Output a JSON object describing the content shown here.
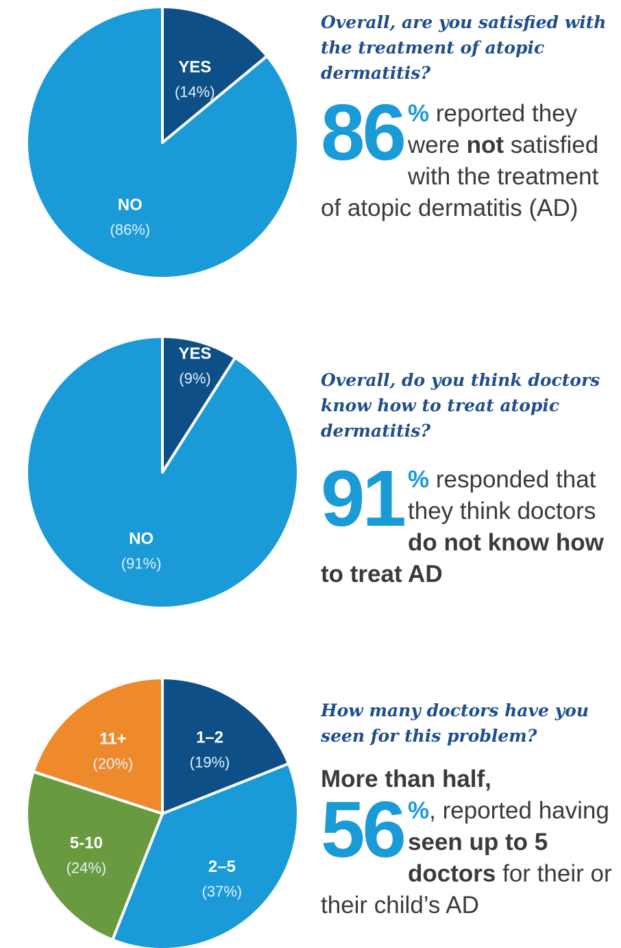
{
  "chart_data": [
    {
      "type": "pie",
      "title": "Overall, are you satisfied with the treatment of atopic dermatitis?",
      "categories": [
        "YES",
        "NO"
      ],
      "values": [
        14,
        86
      ],
      "percent_labels": [
        "(14%)",
        "(86%)"
      ],
      "colors": [
        "#0e4f87",
        "#1a9ad6"
      ]
    },
    {
      "type": "pie",
      "title": "Overall, do you think doctors know how to treat atopic dermatitis?",
      "categories": [
        "YES",
        "NO"
      ],
      "values": [
        9,
        91
      ],
      "percent_labels": [
        "(9%)",
        "(91%)"
      ],
      "colors": [
        "#0e4f87",
        "#1a9ad6"
      ]
    },
    {
      "type": "pie",
      "title": "How many doctors have you seen for this problem?",
      "categories": [
        "1–2",
        "2–5",
        "5-10",
        "11+"
      ],
      "values": [
        19,
        37,
        24,
        20
      ],
      "percent_labels": [
        "(19%)",
        "(37%)",
        "(24%)",
        "(20%)"
      ],
      "colors": [
        "#0e4f87",
        "#1a9ad6",
        "#6a9a3f",
        "#ef8a2c"
      ]
    }
  ],
  "panels": [
    {
      "question": "Overall, are you satisfied with the treatment of atopic dermatitis?",
      "big_number": "86",
      "percent_sign": "%",
      "text_1": " reported they were ",
      "bold_1": "not",
      "text_2": " satisfied with the treatment of atopic dermatitis (AD)"
    },
    {
      "question": "Overall, do you think doctors know how to treat atopic dermatitis?",
      "big_number": "91",
      "percent_sign": "%",
      "text_1": " responded that they think doctors ",
      "bold_1": "do not know how to treat AD",
      "text_2": ""
    },
    {
      "question": "How many doctors have you seen for this problem?",
      "lead": "More than half,",
      "big_number": "56",
      "percent_sign": "%",
      "text_1": ", reported having ",
      "bold_1": "seen up to 5 doctors",
      "text_2": " for their or their child’s AD"
    }
  ]
}
